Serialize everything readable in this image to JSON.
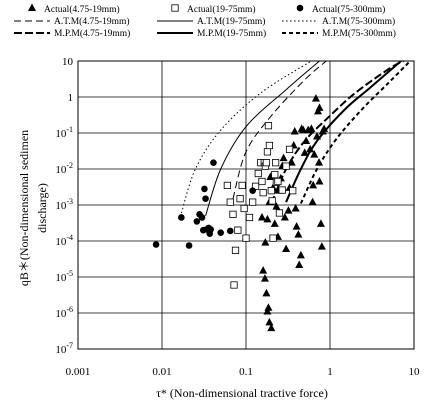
{
  "chart_data": {
    "type": "scatter",
    "xlabel": "τ* (Non-dimensional tractive force)",
    "ylabel_lines": [
      "qB＊(Non-dimensional sedimen",
      "discharge)"
    ],
    "x_scale": "log",
    "y_scale": "log",
    "xlim": [
      0.001,
      10
    ],
    "ylim": [
      1e-07,
      10
    ],
    "x_ticks": [
      {
        "value": 0.001,
        "label": "0.001"
      },
      {
        "value": 0.01,
        "label": "0.01"
      },
      {
        "value": 0.1,
        "label": "0.1"
      },
      {
        "value": 1,
        "label": "1"
      },
      {
        "value": 10,
        "label": "10"
      }
    ],
    "y_ticks": [
      {
        "value": 10,
        "base": "10",
        "exp": ""
      },
      {
        "value": 1,
        "base": "1",
        "exp": ""
      },
      {
        "value": 0.1,
        "base": "10",
        "exp": "-1"
      },
      {
        "value": 0.01,
        "base": "10",
        "exp": "-2"
      },
      {
        "value": 0.001,
        "base": "10",
        "exp": "-3"
      },
      {
        "value": 0.0001,
        "base": "10",
        "exp": "-4"
      },
      {
        "value": 1e-05,
        "base": "10",
        "exp": "-5"
      },
      {
        "value": 1e-06,
        "base": "10",
        "exp": "-6"
      },
      {
        "value": 1e-07,
        "base": "10",
        "exp": "-7"
      }
    ],
    "grid": true,
    "legend": {
      "rows": [
        [
          {
            "label": "Actual(4.75-19mm)",
            "marker": "triangle"
          },
          {
            "label": "Actual(19-75mm)",
            "marker": "square"
          },
          {
            "label": "Actual(75-300mm)",
            "marker": "circle"
          }
        ],
        [
          {
            "label": "A.T.M(4.75-19mm)",
            "dash": "7,4",
            "width": 1
          },
          {
            "label": "A.T.M(19-75mm)",
            "dash": "",
            "width": 1
          },
          {
            "label": "A.T.M(75-300mm)",
            "dash": "1.5,2.5",
            "width": 1
          }
        ],
        [
          {
            "label": "M.P.M(4.75-19mm)",
            "dash": "8,3",
            "width": 2
          },
          {
            "label": "M.P.M(19-75mm)",
            "dash": "",
            "width": 2
          },
          {
            "label": "M.P.M(75-300mm)",
            "dash": "4,3",
            "width": 2
          }
        ]
      ]
    },
    "scatter_series": [
      {
        "name": "Actual(4.75-19mm)",
        "marker": "triangle",
        "points": [
          [
            0.155,
            0.00045
          ],
          [
            0.16,
            1.5e-05
          ],
          [
            0.168,
            9e-06
          ],
          [
            0.175,
            3.5e-06
          ],
          [
            0.18,
            1.1e-06
          ],
          [
            0.185,
            1.4e-06
          ],
          [
            0.19,
            5.5e-07
          ],
          [
            0.2,
            3.8e-07
          ],
          [
            0.17,
            9e-05
          ],
          [
            0.18,
            0.0004
          ],
          [
            0.19,
            0.0012
          ],
          [
            0.195,
            0.006
          ],
          [
            0.21,
            0.003
          ],
          [
            0.22,
            0.0003
          ],
          [
            0.23,
            0.0009
          ],
          [
            0.24,
            0.00013
          ],
          [
            0.25,
            0.0025
          ],
          [
            0.26,
            0.0055
          ],
          [
            0.27,
            0.012
          ],
          [
            0.28,
            0.02
          ],
          [
            0.29,
            0.00045
          ],
          [
            0.3,
            6e-05
          ],
          [
            0.32,
            0.0007
          ],
          [
            0.33,
            0.003
          ],
          [
            0.35,
            0.015
          ],
          [
            0.37,
            0.045
          ],
          [
            0.38,
            0.11
          ],
          [
            0.39,
            0.0008
          ],
          [
            0.4,
            0.00025
          ],
          [
            0.42,
            0.00015
          ],
          [
            0.43,
            2.15e-05
          ],
          [
            0.45,
            4e-05
          ],
          [
            0.46,
            0.13
          ],
          [
            0.48,
            0.12
          ],
          [
            0.5,
            0.028
          ],
          [
            0.52,
            0.06
          ],
          [
            0.55,
            0.12
          ],
          [
            0.58,
            0.035
          ],
          [
            0.6,
            0.13
          ],
          [
            0.62,
            0.0012
          ],
          [
            0.63,
            0.0035
          ],
          [
            0.65,
            0.025
          ],
          [
            0.68,
            0.9
          ],
          [
            0.7,
            0.08
          ],
          [
            0.72,
            0.4
          ],
          [
            0.74,
            0.015
          ],
          [
            0.75,
            0.0045
          ],
          [
            0.78,
            0.0003
          ],
          [
            0.8,
            7e-05
          ],
          [
            0.82,
            0.11
          ],
          [
            0.85,
            0.13
          ],
          [
            0.75,
            0.5
          ]
        ]
      },
      {
        "name": "Actual(19-75mm)",
        "marker": "square",
        "points": [
          [
            0.06,
            0.0035
          ],
          [
            0.065,
            0.0012
          ],
          [
            0.07,
            0.00055
          ],
          [
            0.072,
            6e-06
          ],
          [
            0.075,
            5.5e-05
          ],
          [
            0.08,
            0.0002
          ],
          [
            0.085,
            0.0015
          ],
          [
            0.09,
            0.0035
          ],
          [
            0.095,
            0.0008
          ],
          [
            0.1,
            0.00012
          ],
          [
            0.11,
            0.00045
          ],
          [
            0.12,
            0.0012
          ],
          [
            0.13,
            0.0033
          ],
          [
            0.14,
            0.0075
          ],
          [
            0.15,
            0.015
          ],
          [
            0.155,
            0.0045
          ],
          [
            0.16,
            0.0022
          ],
          [
            0.165,
            0.015
          ],
          [
            0.17,
            0.012
          ],
          [
            0.175,
            0.015
          ],
          [
            0.18,
            0.03
          ],
          [
            0.185,
            0.16
          ],
          [
            0.19,
            0.045
          ],
          [
            0.2,
            0.0025
          ],
          [
            0.205,
            0.0013
          ],
          [
            0.21,
            0.00012
          ],
          [
            0.22,
            0.007
          ],
          [
            0.225,
            0.015
          ],
          [
            0.23,
            0.0043
          ],
          [
            0.24,
            0.0045
          ],
          [
            0.25,
            0.0006
          ],
          [
            0.27,
            0.0026
          ],
          [
            0.3,
            0.012
          ],
          [
            0.33,
            0.035
          ],
          [
            0.36,
            0.0025
          ]
        ]
      },
      {
        "name": "Actual(75-300mm)",
        "marker": "circle",
        "points": [
          [
            0.0085,
            8e-05
          ],
          [
            0.017,
            0.00045
          ],
          [
            0.021,
            7.5e-05
          ],
          [
            0.026,
            0.00035
          ],
          [
            0.028,
            0.00055
          ],
          [
            0.03,
            0.00045
          ],
          [
            0.031,
            0.0002
          ],
          [
            0.032,
            0.0028
          ],
          [
            0.033,
            0.0015
          ],
          [
            0.034,
            0.00021
          ],
          [
            0.036,
            0.00023
          ],
          [
            0.037,
            0.00016
          ],
          [
            0.038,
            0.00021
          ],
          [
            0.041,
            0.015
          ],
          [
            0.05,
            0.00017
          ],
          [
            0.065,
            0.00019
          ],
          [
            0.12,
            0.0025
          ]
        ]
      }
    ],
    "line_series": [
      {
        "name": "A.T.M(4.75-19mm)",
        "dash": "7,4",
        "width": 1,
        "points": [
          [
            0.07,
            0.0015
          ],
          [
            0.1,
            0.03
          ],
          [
            0.2,
            0.3
          ],
          [
            0.5,
            3
          ],
          [
            0.9,
            10
          ]
        ]
      },
      {
        "name": "A.T.M(19-75mm)",
        "dash": "",
        "width": 1,
        "points": [
          [
            0.033,
            0.0005
          ],
          [
            0.05,
            0.01
          ],
          [
            0.1,
            0.15
          ],
          [
            0.3,
            1.6
          ],
          [
            0.75,
            10
          ]
        ]
      },
      {
        "name": "A.T.M(75-300mm)",
        "dash": "1.5,2.5",
        "width": 1,
        "points": [
          [
            0.017,
            0.0006
          ],
          [
            0.025,
            0.01
          ],
          [
            0.05,
            0.12
          ],
          [
            0.15,
            1.3
          ],
          [
            0.6,
            10
          ]
        ]
      },
      {
        "name": "M.P.M(4.75-19mm)",
        "dash": "8,3",
        "width": 2,
        "points": [
          [
            0.2,
            0.0011
          ],
          [
            0.3,
            0.01
          ],
          [
            0.5,
            0.06
          ],
          [
            1,
            0.3
          ],
          [
            2,
            1.3
          ],
          [
            5,
            6
          ],
          [
            7.5,
            10
          ]
        ]
      },
      {
        "name": "M.P.M(19-75mm)",
        "dash": "",
        "width": 2,
        "points": [
          [
            0.3,
            0.0012
          ],
          [
            0.45,
            0.01
          ],
          [
            0.7,
            0.06
          ],
          [
            1.5,
            0.45
          ],
          [
            3,
            1.8
          ],
          [
            7,
            10
          ]
        ]
      },
      {
        "name": "M.P.M(75-300mm)",
        "dash": "4,3",
        "width": 2,
        "points": [
          [
            0.45,
            0.0011
          ],
          [
            0.7,
            0.01
          ],
          [
            1.2,
            0.07
          ],
          [
            2.5,
            0.5
          ],
          [
            5,
            2.5
          ],
          [
            9,
            10
          ]
        ]
      }
    ]
  }
}
